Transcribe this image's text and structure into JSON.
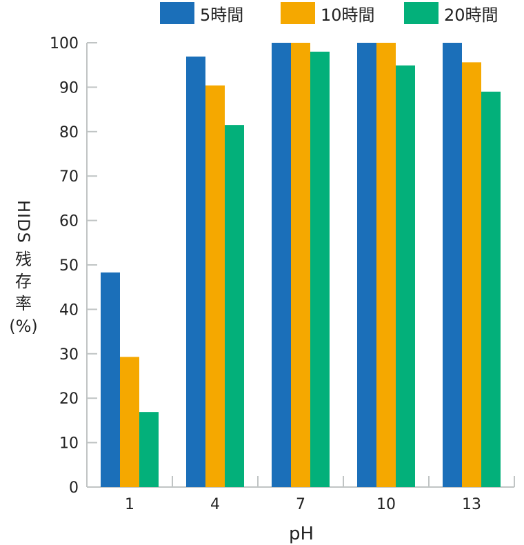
{
  "chart_data": {
    "type": "bar",
    "title": "",
    "xlabel": "pH",
    "ylabel_parts": [
      "HIDS",
      "残",
      "存",
      "率",
      "(%)"
    ],
    "ylabel": "HIDS残存率(%)",
    "categories": [
      "1",
      "4",
      "7",
      "10",
      "13"
    ],
    "series": [
      {
        "name": "5時間",
        "color": "#1b6fb9",
        "values": [
          48.3,
          96.9,
          100,
          100,
          100
        ]
      },
      {
        "name": "10時間",
        "color": "#f5a800",
        "values": [
          29.3,
          90.4,
          100,
          100,
          95.6
        ]
      },
      {
        "name": "20時間",
        "color": "#03b07a",
        "values": [
          16.9,
          81.5,
          98.0,
          94.9,
          89.0
        ]
      }
    ],
    "ylim": [
      0,
      100
    ],
    "yticks": [
      0,
      10,
      20,
      30,
      40,
      50,
      60,
      70,
      80,
      90,
      100
    ],
    "grid": false,
    "legend_position": "top-right",
    "axis_color": "#c0c4c4"
  }
}
